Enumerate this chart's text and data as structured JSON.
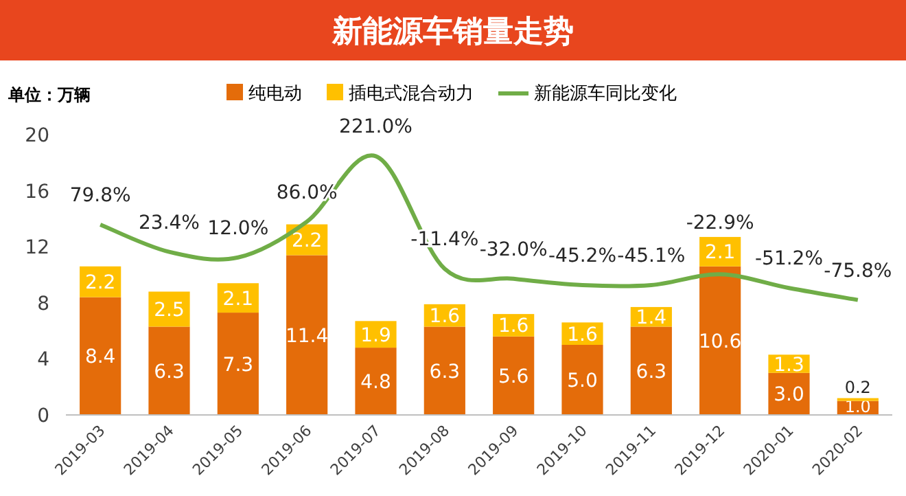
{
  "chart_data": {
    "type": "bar",
    "title": "新能源车销量走势",
    "ylabel": "单位：万辆",
    "stacked": true,
    "data_labels": true,
    "legend": "top",
    "grid": false,
    "categories": [
      "2019-03",
      "2019-04",
      "2019-05",
      "2019-06",
      "2019-07",
      "2019-08",
      "2019-09",
      "2019-10",
      "2019-11",
      "2019-12",
      "2020-01",
      "2020-02"
    ],
    "ylim": [
      0,
      20
    ],
    "yticks": [
      0,
      4,
      8,
      12,
      16,
      20
    ],
    "series": [
      {
        "name": "纯电动",
        "color": "#e46c0a",
        "values": [
          8.4,
          6.3,
          7.3,
          11.4,
          4.8,
          6.3,
          5.6,
          5.0,
          6.3,
          10.6,
          3.0,
          1.0
        ],
        "value_labels": [
          "8.4",
          "6.3",
          "7.3",
          "11.4",
          "4.8",
          "6.3",
          "5.6",
          "5.0",
          "6.3",
          "10.6",
          "3.0",
          "1.0"
        ]
      },
      {
        "name": "插电式混合动力",
        "color": "#ffc000",
        "values": [
          2.2,
          2.5,
          2.1,
          2.2,
          1.9,
          1.6,
          1.6,
          1.6,
          1.4,
          2.1,
          1.3,
          0.2
        ]
      },
      {
        "name": "新能源车同比变化",
        "type": "line",
        "axis": "y2",
        "color": "#70ad47",
        "values": [
          79.8,
          23.4,
          12.0,
          86.0,
          221.0,
          -11.4,
          -32.0,
          -45.2,
          -45.1,
          -22.9,
          -51.2,
          -75.8
        ],
        "value_labels": [
          "79.8%",
          "23.4%",
          "12.0%",
          "86.0%",
          "221.0%",
          "-11.4%",
          "-32.0%",
          "-45.2%",
          "-45.1%",
          "-22.9%",
          "-51.2%",
          "-75.8%"
        ]
      }
    ]
  }
}
